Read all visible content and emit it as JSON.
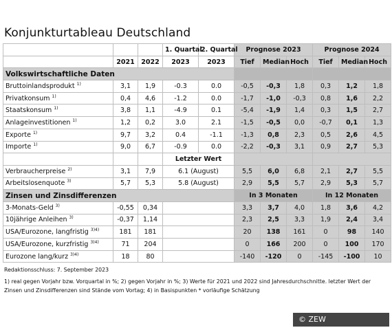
{
  "title": "Konjunkturtableau Deutschland",
  "header": {
    "q1": "1. Quartal",
    "q2": "2. Quartal",
    "prog2023": "Prognose 2023",
    "prog2024": "Prognose 2024",
    "y2021": "2021",
    "y2022": "2022",
    "y2023a": "2023",
    "y2023b": "2023",
    "tief": "Tief",
    "median": "Median",
    "hoch": "Hoch"
  },
  "sections": {
    "vwd": "Volkswirtschaftliche Daten",
    "zinsen": "Zinsen und Zinsdifferenzen",
    "letzter": "Letzter Wert",
    "in3": "In 3 Monaten",
    "in12": "In 12 Monaten"
  },
  "rows_a": [
    {
      "label": "Bruttoinlandsprodukt",
      "note": "1)",
      "v": [
        "3,1",
        "1,9",
        "-0.3",
        "0.0",
        "-0,5",
        "-0,3",
        "1,8",
        "0,3",
        "1,2",
        "1,8"
      ]
    },
    {
      "label": "Privatkonsum",
      "note": "1)",
      "v": [
        "0,4",
        "4,6",
        "-1.2",
        "0.0",
        "-1,7",
        "-1,0",
        "-0,3",
        "0,8",
        "1,6",
        "2,2"
      ]
    },
    {
      "label": "Staatskonsum",
      "note": "1)",
      "v": [
        "3,8",
        "1,1",
        "-4.9",
        "0.1",
        "-5,4",
        "-1,9",
        "1,4",
        "0,3",
        "1,5",
        "2,7"
      ]
    },
    {
      "label": "Anlageinvestitionen",
      "note": "1)",
      "v": [
        "1,2",
        "0,2",
        "3.0",
        "2.1",
        "-1,5",
        "-0,5",
        "0,0",
        "-0,7",
        "0,1",
        "1,3"
      ]
    },
    {
      "label": "Exporte",
      "note": "1)",
      "v": [
        "9,7",
        "3,2",
        "0.4",
        "-1.1",
        "-1,3",
        "0,8",
        "2,3",
        "0,5",
        "2,6",
        "4,5"
      ]
    },
    {
      "label": "Importe",
      "note": "1)",
      "v": [
        "9,0",
        "6,7",
        "-0.9",
        "0.0",
        "-2,2",
        "-0,3",
        "3,1",
        "0,9",
        "2,7",
        "5,3"
      ]
    }
  ],
  "rows_b": [
    {
      "label": "Verbraucherpreise",
      "note": "2)",
      "v": [
        "3,1",
        "7,9",
        "6.1 (August)",
        "5,5",
        "6,0",
        "6,8",
        "2,1",
        "2,7",
        "5,5"
      ]
    },
    {
      "label": "Arbeitslosenquote",
      "note": "3)",
      "v": [
        "5,7",
        "5,3",
        "5.8 (August)",
        "2,9",
        "5,5",
        "5,7",
        "2,9",
        "5,3",
        "5,7"
      ]
    }
  ],
  "rows_c": [
    {
      "label": "3-Monats-Geld",
      "note": "3)",
      "v": [
        "-0,55",
        "0,34",
        "3,3",
        "3,7",
        "4,0",
        "1,8",
        "3,6",
        "4,2"
      ]
    },
    {
      "label": "10jährige Anleihen",
      "note": "3)",
      "v": [
        "-0,37",
        "1,14",
        "2,3",
        "2,5",
        "3,3",
        "1,9",
        "2,4",
        "3,4"
      ]
    },
    {
      "label": "USA/Eurozone, langfristig",
      "note": "3)4)",
      "v": [
        "181",
        "181",
        "20",
        "138",
        "161",
        "0",
        "98",
        "140"
      ]
    },
    {
      "label": "USA/Eurozone, kurzfristig",
      "note": "3)4)",
      "v": [
        "71",
        "204",
        "0",
        "166",
        "200",
        "0",
        "100",
        "170"
      ]
    },
    {
      "label": "Eurozone lang/kurz",
      "note": "3)4)",
      "v": [
        "18",
        "80",
        "-140",
        "-120",
        "0",
        "-145",
        "-100",
        "10"
      ]
    }
  ],
  "footer": {
    "redaktion": "Redaktionsschluss: 7. September 2023",
    "notes": "1) real gegen Vorjahr bzw. Vorquartal in %; 2) gegen Vorjahr in %; 3) Werte für 2021 und 2022 sind Jahresdurchschnitte. letzter Wert der Zinsen und Zinsdifferenzen sind Stände vom Vortag; 4) in Basispunkten * vorläufige Schätzung",
    "credit": "© ZEW"
  }
}
